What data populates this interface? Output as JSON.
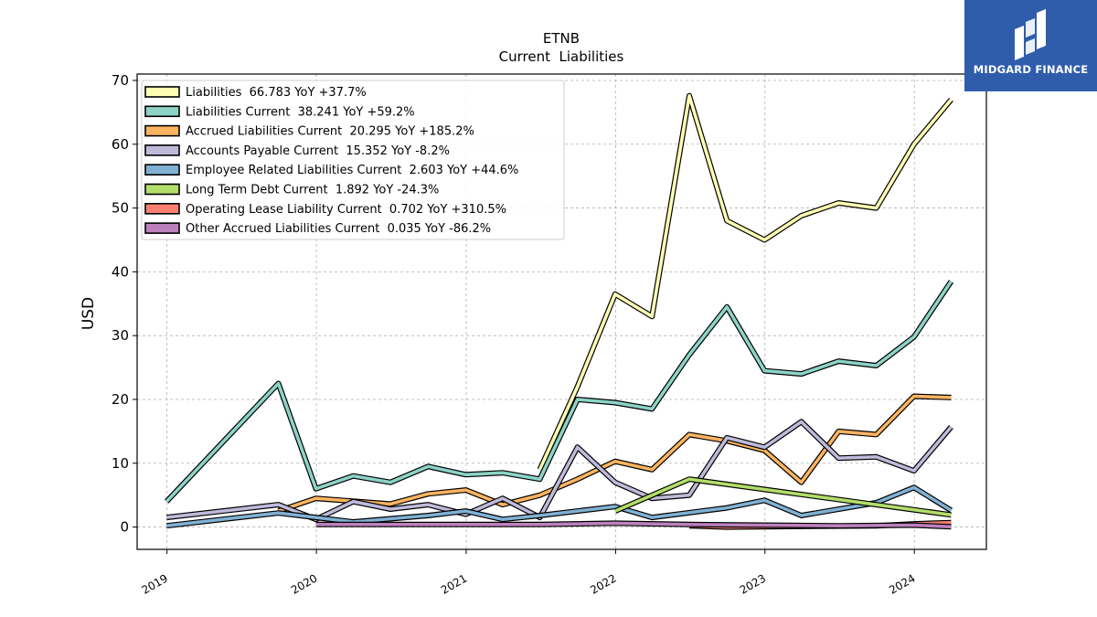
{
  "brand": {
    "name": "MIDGARD FINANCE"
  },
  "chart_data": {
    "type": "line",
    "title": "ETNB",
    "subtitle": "Current  Liabilities",
    "ylabel": "USD",
    "xlabel": "",
    "ylim": [
      -3.5,
      71
    ],
    "xlim": [
      "2018-10-20",
      "2024-06-25"
    ],
    "yticks": [
      0,
      10,
      20,
      30,
      40,
      50,
      60,
      70
    ],
    "xticks": [
      "2019",
      "2020",
      "2021",
      "2022",
      "2023",
      "2024"
    ],
    "grid": true,
    "legend_position": "top-left",
    "series": [
      {
        "name": "Liabilities  66.783 YoY +37.7%",
        "color": "#ffffb3",
        "points": [
          [
            "2021-06-30",
            9.0
          ],
          [
            "2021-09-30",
            22.0
          ],
          [
            "2021-12-31",
            36.5
          ],
          [
            "2022-03-31",
            33.0
          ],
          [
            "2022-06-30",
            67.6
          ],
          [
            "2022-09-30",
            48.0
          ],
          [
            "2022-12-31",
            45.0
          ],
          [
            "2023-03-31",
            48.8
          ],
          [
            "2023-06-30",
            50.8
          ],
          [
            "2023-09-30",
            50.0
          ],
          [
            "2023-12-31",
            60.0
          ],
          [
            "2024-03-31",
            67.0
          ]
        ]
      },
      {
        "name": "Liabilities Current  38.241 YoY +59.2%",
        "color": "#8dd3c7",
        "points": [
          [
            "2018-12-31",
            4.0
          ],
          [
            "2019-09-30",
            22.5
          ],
          [
            "2019-12-31",
            6.0
          ],
          [
            "2020-03-31",
            8.0
          ],
          [
            "2020-06-30",
            7.0
          ],
          [
            "2020-09-30",
            9.5
          ],
          [
            "2020-12-31",
            8.2
          ],
          [
            "2021-03-31",
            8.5
          ],
          [
            "2021-06-30",
            7.5
          ],
          [
            "2021-09-30",
            20.0
          ],
          [
            "2021-12-31",
            19.5
          ],
          [
            "2022-03-31",
            18.5
          ],
          [
            "2022-06-30",
            27.0
          ],
          [
            "2022-09-30",
            34.5
          ],
          [
            "2022-12-31",
            24.5
          ],
          [
            "2023-03-31",
            24.0
          ],
          [
            "2023-06-30",
            26.0
          ],
          [
            "2023-09-30",
            25.3
          ],
          [
            "2023-12-31",
            29.8
          ],
          [
            "2024-03-31",
            38.5
          ]
        ]
      },
      {
        "name": "Accrued Liabilities Current  20.295 YoY +185.2%",
        "color": "#fdb462",
        "points": [
          [
            "2019-09-30",
            2.5
          ],
          [
            "2019-12-31",
            4.5
          ],
          [
            "2020-06-30",
            3.6
          ],
          [
            "2020-09-30",
            5.2
          ],
          [
            "2020-12-31",
            5.8
          ],
          [
            "2021-03-31",
            3.5
          ],
          [
            "2021-06-30",
            5.0
          ],
          [
            "2021-09-30",
            7.5
          ],
          [
            "2021-12-31",
            10.3
          ],
          [
            "2022-03-31",
            9.0
          ],
          [
            "2022-06-30",
            14.5
          ],
          [
            "2022-09-30",
            13.5
          ],
          [
            "2022-12-31",
            12.0
          ],
          [
            "2023-03-31",
            7.0
          ],
          [
            "2023-06-30",
            15.0
          ],
          [
            "2023-09-30",
            14.5
          ],
          [
            "2023-12-31",
            20.5
          ],
          [
            "2024-03-31",
            20.3
          ]
        ]
      },
      {
        "name": "Accounts Payable Current  15.352 YoY -8.2%",
        "color": "#bebada",
        "points": [
          [
            "2018-12-31",
            1.5
          ],
          [
            "2019-09-30",
            3.5
          ],
          [
            "2019-12-31",
            1.2
          ],
          [
            "2020-03-31",
            4.0
          ],
          [
            "2020-06-30",
            2.8
          ],
          [
            "2020-09-30",
            3.5
          ],
          [
            "2020-12-31",
            2.0
          ],
          [
            "2021-03-31",
            4.5
          ],
          [
            "2021-06-30",
            1.5
          ],
          [
            "2021-09-30",
            12.5
          ],
          [
            "2021-12-31",
            7.0
          ],
          [
            "2022-03-31",
            4.5
          ],
          [
            "2022-06-30",
            5.0
          ],
          [
            "2022-09-30",
            14.0
          ],
          [
            "2022-12-31",
            12.5
          ],
          [
            "2023-03-31",
            16.5
          ],
          [
            "2023-06-30",
            10.8
          ],
          [
            "2023-09-30",
            11.0
          ],
          [
            "2023-12-31",
            8.8
          ],
          [
            "2024-03-31",
            15.7
          ]
        ]
      },
      {
        "name": "Employee Related Liabilities Current  2.603 YoY +44.6%",
        "color": "#80b1d3",
        "points": [
          [
            "2018-12-31",
            0.2
          ],
          [
            "2019-09-30",
            2.2
          ],
          [
            "2019-12-31",
            1.5
          ],
          [
            "2020-03-31",
            0.8
          ],
          [
            "2020-09-30",
            1.8
          ],
          [
            "2020-12-31",
            2.5
          ],
          [
            "2021-03-31",
            1.2
          ],
          [
            "2021-06-30",
            1.8
          ],
          [
            "2021-12-31",
            3.2
          ],
          [
            "2022-03-31",
            1.5
          ],
          [
            "2022-09-30",
            3.0
          ],
          [
            "2022-12-31",
            4.2
          ],
          [
            "2023-03-31",
            1.8
          ],
          [
            "2023-09-30",
            3.8
          ],
          [
            "2023-12-31",
            6.2
          ],
          [
            "2024-03-31",
            2.6
          ]
        ]
      },
      {
        "name": "Long Term Debt Current  1.892 YoY -24.3%",
        "color": "#b3de69",
        "points": [
          [
            "2021-12-31",
            2.5
          ],
          [
            "2022-06-30",
            7.5
          ],
          [
            "2024-03-31",
            1.9
          ]
        ]
      },
      {
        "name": "Operating Lease Liability Current  0.702 YoY +310.5%",
        "color": "#fb8072",
        "points": [
          [
            "2022-06-30",
            0.2
          ],
          [
            "2022-09-30",
            0.0
          ],
          [
            "2023-09-30",
            0.2
          ],
          [
            "2023-12-31",
            0.5
          ],
          [
            "2024-03-31",
            0.7
          ]
        ]
      },
      {
        "name": "Other Accrued Liabilities Current  0.035 YoY -86.2%",
        "color": "#bc80bd",
        "points": [
          [
            "2019-12-31",
            0.4
          ],
          [
            "2020-12-31",
            0.4
          ],
          [
            "2021-06-30",
            0.4
          ],
          [
            "2021-12-31",
            0.6
          ],
          [
            "2022-06-30",
            0.4
          ],
          [
            "2022-12-31",
            0.3
          ],
          [
            "2023-06-30",
            0.2
          ],
          [
            "2023-12-31",
            0.3
          ],
          [
            "2024-03-31",
            0.04
          ]
        ]
      }
    ]
  }
}
